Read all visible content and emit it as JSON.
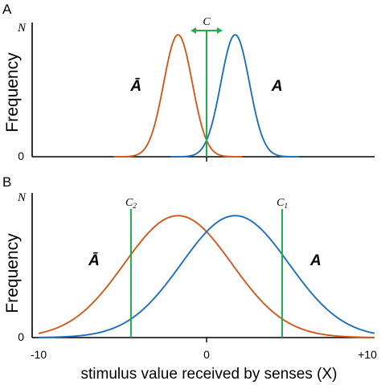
{
  "chart_data": [
    {
      "type": "line",
      "panel_label": "A",
      "ylabel": "Frequency",
      "y_ticks": {
        "zero": "0",
        "max": "N"
      },
      "xlim": [
        -10,
        10
      ],
      "series": [
        {
          "name": "Ā",
          "color": "#d05a1e",
          "mean": -1.7,
          "sd": 0.85,
          "peak": 0.96
        },
        {
          "name": "A",
          "color": "#1f6fbf",
          "mean": 1.7,
          "sd": 0.85,
          "peak": 0.96
        }
      ],
      "criteria": [
        {
          "label": "C",
          "sub": "",
          "x": 0,
          "arrow": true,
          "color": "#1fae4b"
        }
      ],
      "category_labels": [
        {
          "text": "Ā",
          "x": -4.2,
          "y": 0.52
        },
        {
          "text": "A",
          "x": 4.2,
          "y": 0.52
        }
      ]
    },
    {
      "type": "line",
      "panel_label": "B",
      "ylabel": "Frequency",
      "y_ticks": {
        "zero": "0",
        "max": "N"
      },
      "xlabel": "stimulus value received by senses (X)",
      "x_ticks": [
        "-10",
        "0",
        "+10"
      ],
      "xlim": [
        -10,
        10
      ],
      "series": [
        {
          "name": "Ā",
          "color": "#d05a1e",
          "mean": -1.7,
          "sd": 3.2,
          "peak": 0.96
        },
        {
          "name": "A",
          "color": "#1f6fbf",
          "mean": 1.7,
          "sd": 3.2,
          "peak": 0.96
        }
      ],
      "criteria": [
        {
          "label": "C",
          "sub": "2",
          "x": -4.5,
          "arrow": false,
          "color": "#1fae4b"
        },
        {
          "label": "C",
          "sub": "1",
          "x": 4.5,
          "arrow": false,
          "color": "#1fae4b"
        }
      ],
      "category_labels": [
        {
          "text": "Ā",
          "x": -6.7,
          "y": 0.57
        },
        {
          "text": "A",
          "x": 6.5,
          "y": 0.57
        }
      ]
    }
  ]
}
